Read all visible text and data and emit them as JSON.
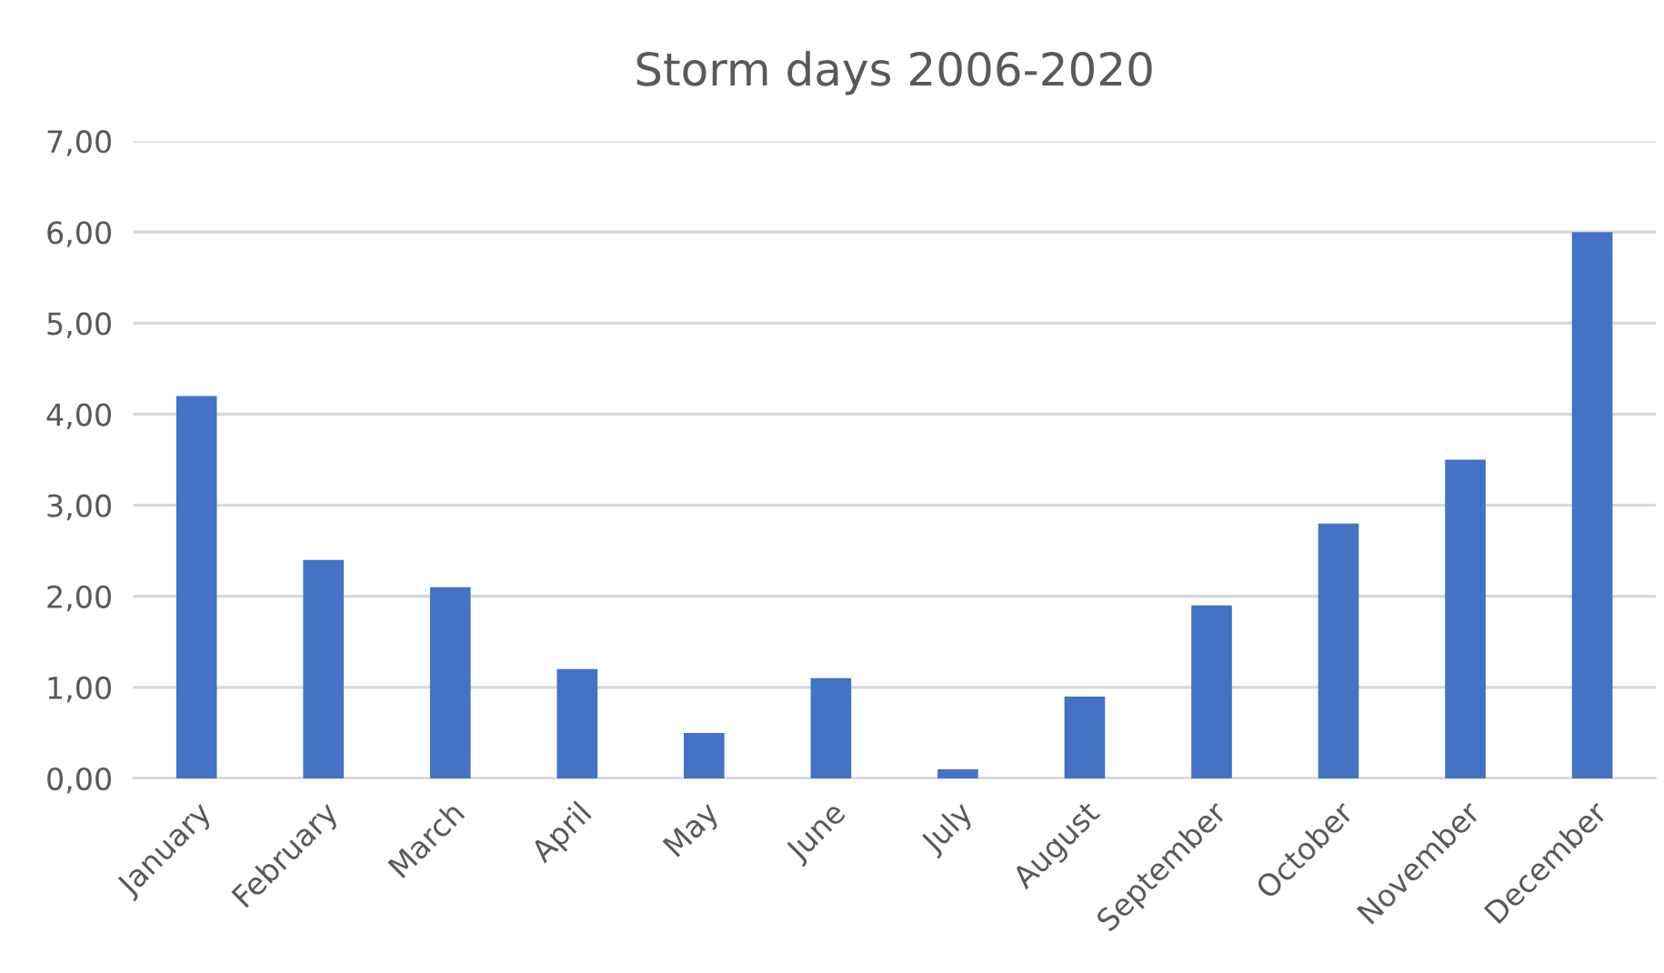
{
  "chart_data": {
    "type": "bar",
    "title": "Storm days 2006-2020",
    "categories": [
      "January",
      "February",
      "March",
      "April",
      "May",
      "June",
      "July",
      "August",
      "September",
      "October",
      "November",
      "December"
    ],
    "values": [
      4.2,
      2.4,
      2.1,
      1.2,
      0.5,
      1.1,
      0.1,
      0.9,
      1.9,
      2.8,
      3.5,
      6.0
    ],
    "color": "#4472c4",
    "ylim": [
      0,
      7
    ],
    "yticks": [
      {
        "value": 0,
        "label": "0,00"
      },
      {
        "value": 1,
        "label": "1,00"
      },
      {
        "value": 2,
        "label": "2,00"
      },
      {
        "value": 3,
        "label": "3,00"
      },
      {
        "value": 4,
        "label": "4,00"
      },
      {
        "value": 5,
        "label": "5,00"
      },
      {
        "value": 6,
        "label": "6,00"
      },
      {
        "value": 7,
        "label": "7,00"
      }
    ],
    "grid": "y",
    "legend": false
  }
}
